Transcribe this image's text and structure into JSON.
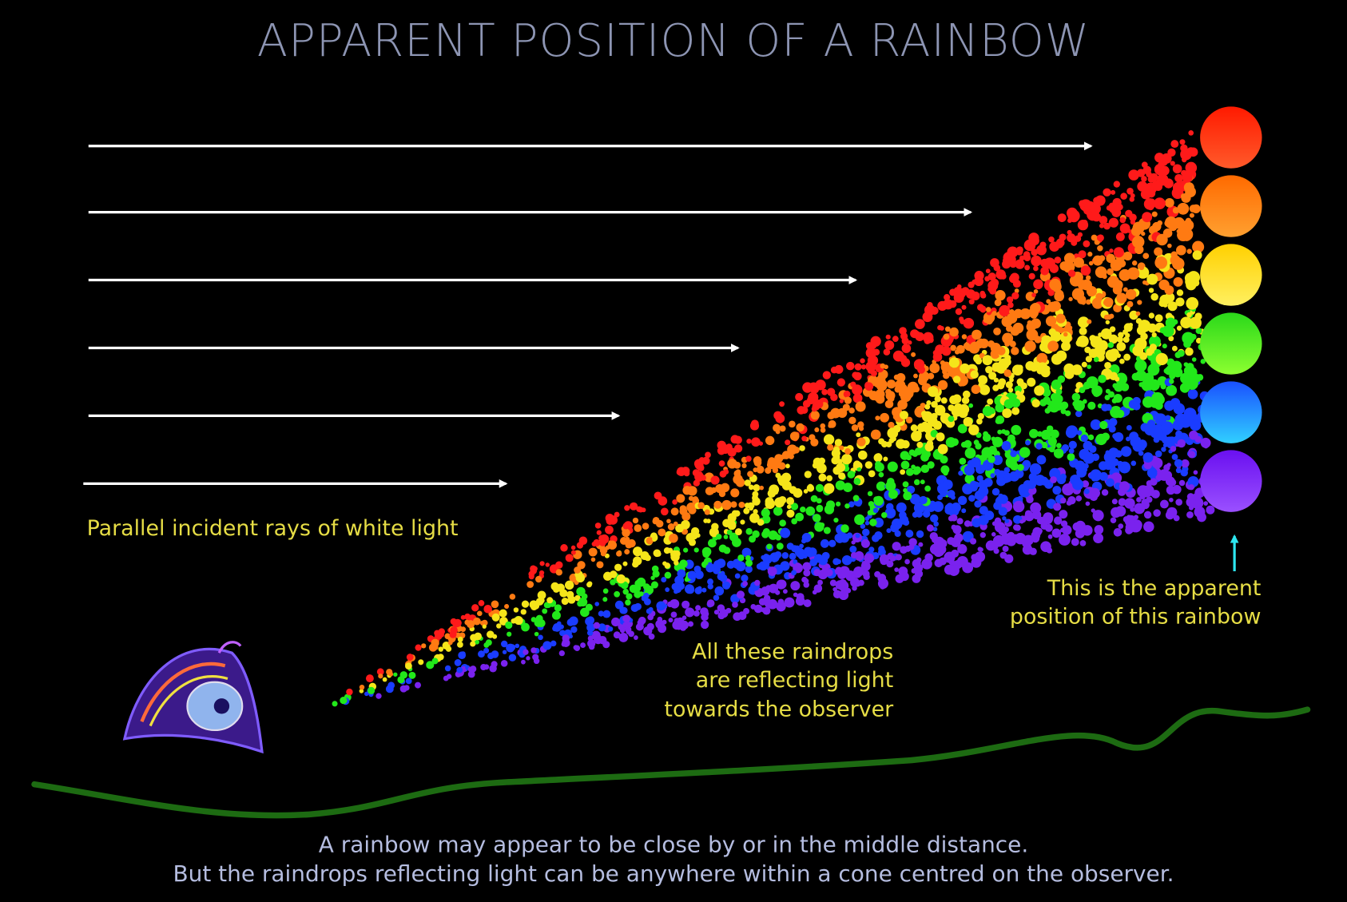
{
  "header": {
    "title": "APPARENT POSITION OF A RAINBOW"
  },
  "labels": {
    "incident_rays": "Parallel incident rays of white light",
    "raindrops": [
      "All these raindrops",
      "are reflecting light",
      "towards the observer"
    ],
    "apparent_position": [
      "This is the apparent",
      "position of this rainbow"
    ]
  },
  "caption": [
    "A rainbow may appear to be close by or in the middle distance.",
    "But the raindrops reflecting light can be anywhere within a cone centred on the observer."
  ]
}
